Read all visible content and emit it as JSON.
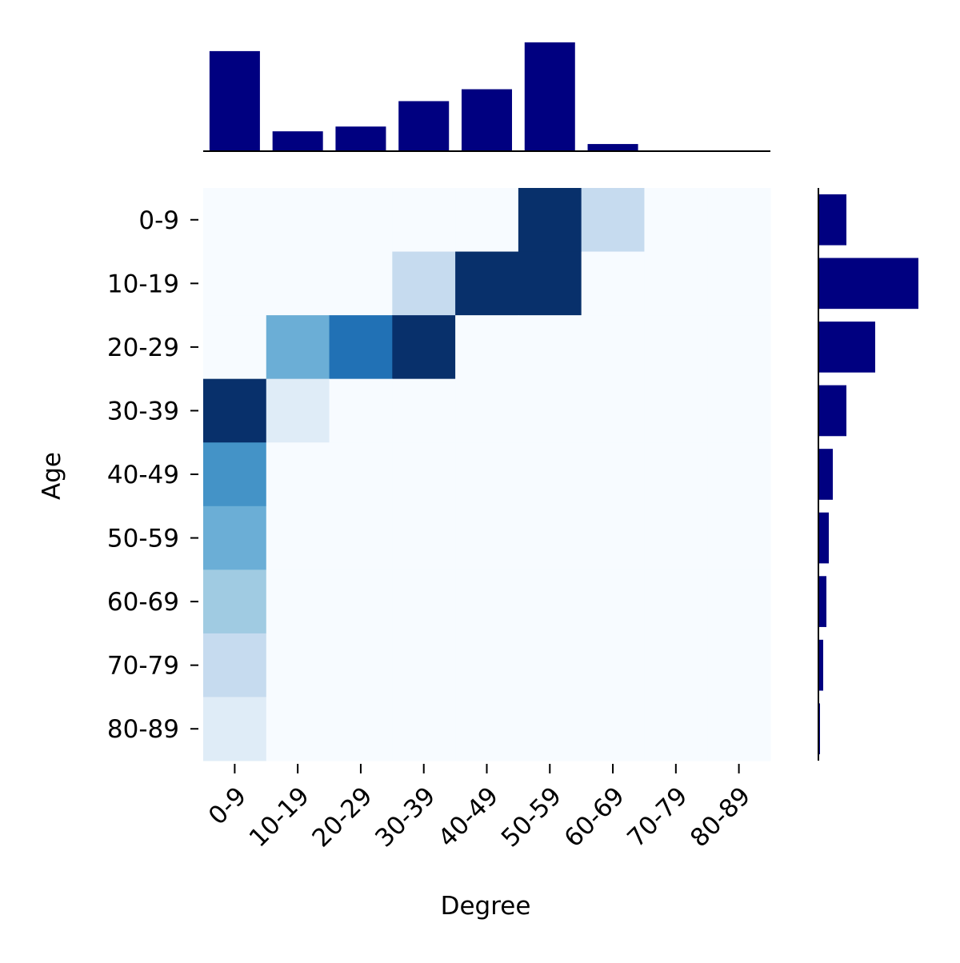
{
  "chart_data": [
    {
      "type": "heatmap",
      "x_label": "Degree",
      "y_label": "Age",
      "x_categories": [
        "0-9",
        "10-19",
        "20-29",
        "30-39",
        "40-49",
        "50-59",
        "60-69",
        "70-79",
        "80-89"
      ],
      "y_categories": [
        "0-9",
        "10-19",
        "20-29",
        "30-39",
        "40-49",
        "50-59",
        "60-69",
        "70-79",
        "80-89"
      ],
      "values": [
        [
          0,
          0,
          0,
          0,
          0,
          1,
          0.25,
          0,
          0
        ],
        [
          0,
          0,
          0,
          0.25,
          1,
          1,
          0,
          0,
          0
        ],
        [
          0,
          0.5,
          0.75,
          1,
          0,
          0,
          0,
          0,
          0
        ],
        [
          1,
          0.12,
          0,
          0,
          0,
          0,
          0,
          0,
          0
        ],
        [
          0.62,
          0,
          0,
          0,
          0,
          0,
          0,
          0,
          0
        ],
        [
          0.5,
          0,
          0,
          0,
          0,
          0,
          0,
          0,
          0
        ],
        [
          0.37,
          0,
          0,
          0,
          0,
          0,
          0,
          0,
          0
        ],
        [
          0.25,
          0,
          0,
          0,
          0,
          0,
          0,
          0,
          0
        ],
        [
          0.12,
          0,
          0,
          0,
          0,
          0,
          0,
          0,
          0
        ]
      ],
      "zlim": [
        0,
        1
      ],
      "colormap": [
        "#f7fbff",
        "#deebf7",
        "#c6dbef",
        "#9ecae1",
        "#6baed6",
        "#4292c6",
        "#2171b5",
        "#08519c",
        "#08306b"
      ]
    },
    {
      "type": "bar",
      "values": [
        126,
        25,
        31,
        63,
        78,
        137,
        9,
        0,
        0
      ],
      "color": "#000080",
      "ylim": [
        0,
        140
      ]
    },
    {
      "type": "barh",
      "values": [
        35,
        125,
        71,
        35,
        18,
        13,
        10,
        6,
        2
      ],
      "color": "#000080",
      "xlim": [
        0,
        140
      ]
    }
  ]
}
